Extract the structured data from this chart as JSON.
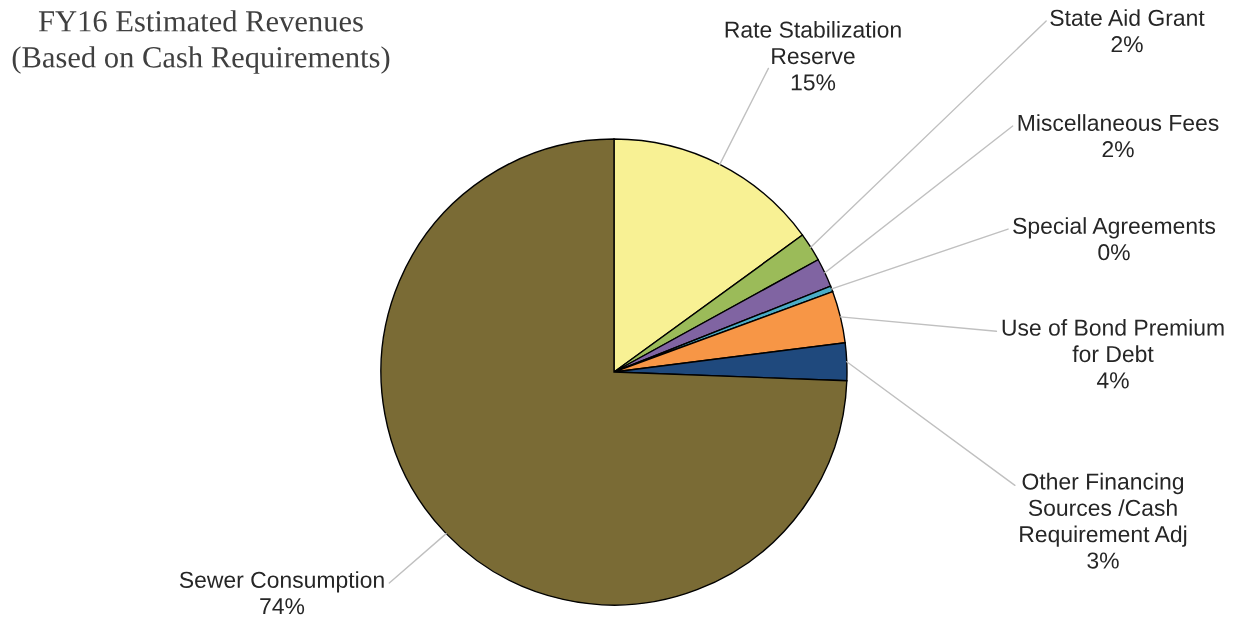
{
  "chart_data": {
    "type": "pie",
    "title": "FY16 Estimated Revenues",
    "subtitle": "(Based on Cash Requirements)",
    "categories": [
      "Rate Stabilization\nReserve",
      "State Aid Grant",
      "Miscellaneous Fees",
      "Special Agreements",
      "Use of Bond Premium\nfor Debt",
      "Other Financing\nSources /Cash\nRequirement Adj",
      "Sewer Consumption"
    ],
    "values": [
      15,
      2,
      2,
      0.4,
      3.6,
      2.6,
      74.4
    ],
    "value_labels": [
      "15%",
      "2%",
      "2%",
      "0%",
      "4%",
      "3%",
      "74%"
    ],
    "colors": [
      "#f8f194",
      "#9bbb59",
      "#8064a2",
      "#4bacc6",
      "#f79646",
      "#1f497d",
      "#7a6b35"
    ]
  }
}
